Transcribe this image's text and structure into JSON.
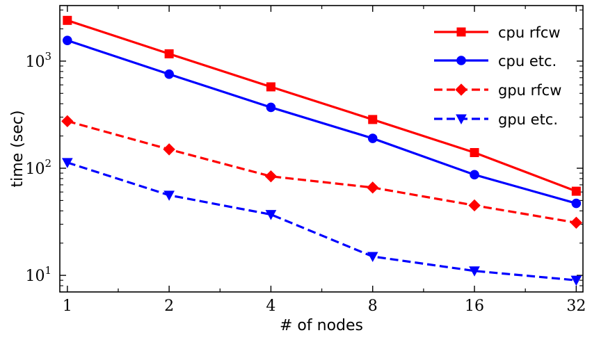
{
  "chart_data": {
    "type": "line",
    "xlabel": "# of nodes",
    "ylabel": "time (sec)",
    "x": [
      1,
      2,
      4,
      8,
      16,
      32
    ],
    "x_scale": "log2",
    "y_scale": "log10",
    "xlim": [
      0.95,
      33.5
    ],
    "ylim": [
      7,
      3300
    ],
    "x_tick_labels": [
      "1",
      "2",
      "4",
      "8",
      "16",
      "32"
    ],
    "y_ticks": [
      {
        "value": 10,
        "base": "10",
        "exp": "1"
      },
      {
        "value": 100,
        "base": "10",
        "exp": "2"
      },
      {
        "value": 1000,
        "base": "10",
        "exp": "3"
      }
    ],
    "grid": false,
    "legend_position": "top-right",
    "series": [
      {
        "name": "cpu rfcw",
        "color": "#ff0000",
        "dash": "solid",
        "marker": "square",
        "values": [
          2400,
          1170,
          575,
          285,
          140,
          61
        ]
      },
      {
        "name": "cpu etc.",
        "color": "#0000ff",
        "dash": "solid",
        "marker": "circle",
        "values": [
          1560,
          755,
          370,
          190,
          87,
          47
        ]
      },
      {
        "name": "gpu rfcw",
        "color": "#ff0000",
        "dash": "dashed",
        "marker": "diamond",
        "values": [
          275,
          150,
          84,
          66,
          45,
          31
        ]
      },
      {
        "name": "gpu etc.",
        "color": "#0000ff",
        "dash": "dashed",
        "marker": "triangle-down",
        "values": [
          113,
          56,
          37,
          15,
          11,
          9
        ]
      }
    ]
  }
}
